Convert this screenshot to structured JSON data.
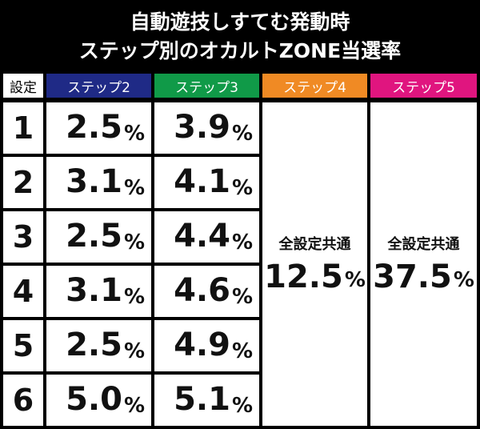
{
  "title": [
    "自動遊技しすてむ発動時",
    "ステップ別のオカルトZONE当選率"
  ],
  "table": {
    "headers": [
      {
        "label": "設定",
        "color": "#ffffff",
        "text_color": "#000000"
      },
      {
        "label": "ステップ2",
        "color": "#1f2a86",
        "text_color": "#ffffff"
      },
      {
        "label": "ステップ3",
        "color": "#109a48",
        "text_color": "#ffffff"
      },
      {
        "label": "ステップ4",
        "color": "#f08a24",
        "text_color": "#ffffff"
      },
      {
        "label": "ステップ5",
        "color": "#e0157f",
        "text_color": "#ffffff"
      }
    ],
    "rows": [
      {
        "setting": "1",
        "cells": [
          {
            "num": "2.5",
            "unit": "%"
          },
          {
            "num": "3.9",
            "unit": "%"
          }
        ]
      },
      {
        "setting": "2",
        "cells": [
          {
            "num": "3.1",
            "unit": "%"
          },
          {
            "num": "4.1",
            "unit": "%"
          }
        ]
      },
      {
        "setting": "3",
        "cells": [
          {
            "num": "2.5",
            "unit": "%"
          },
          {
            "num": "4.4",
            "unit": "%"
          }
        ]
      },
      {
        "setting": "4",
        "cells": [
          {
            "num": "3.1",
            "unit": "%"
          },
          {
            "num": "4.6",
            "unit": "%"
          }
        ]
      },
      {
        "setting": "5",
        "cells": [
          {
            "num": "2.5",
            "unit": "%"
          },
          {
            "num": "4.9",
            "unit": "%"
          }
        ]
      },
      {
        "setting": "6",
        "cells": [
          {
            "num": "5.0",
            "unit": "%"
          },
          {
            "num": "5.1",
            "unit": "%"
          }
        ]
      }
    ],
    "merged": [
      {
        "label": "全設定共通",
        "num": "12.5",
        "unit": "%"
      },
      {
        "label": "全設定共通",
        "num": "37.5",
        "unit": "%"
      }
    ]
  }
}
